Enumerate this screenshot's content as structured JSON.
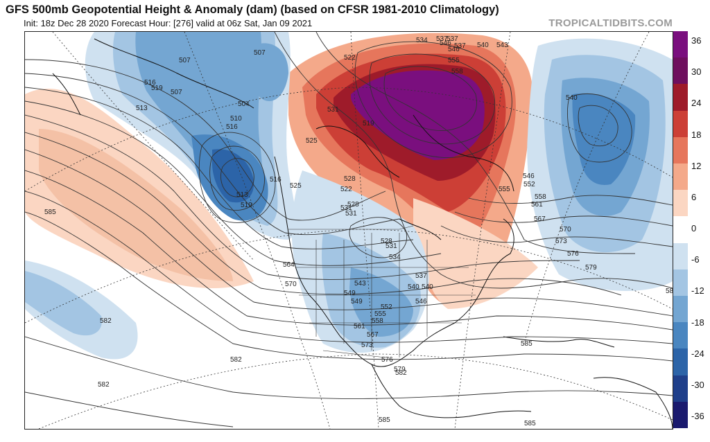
{
  "header": {
    "title": "GFS 500mb Geopotential Height & Anomaly (dam) (based on CFSR 1981-2010 Climatology)",
    "subtitle": "Init: 18z Dec 28 2020   Forecast Hour: [276]   valid at 06z Sat, Jan 09 2021",
    "brand": "TROPICALTIDBITS.COM"
  },
  "colorbar": {
    "labels": [
      "36",
      "30",
      "24",
      "18",
      "12",
      "6",
      "0",
      "-6",
      "-12",
      "-18",
      "-24",
      "-30",
      "-36"
    ],
    "colors": [
      "#1a1a6e",
      "#1f3f8a",
      "#2c64a8",
      "#4a86c0",
      "#74a6d2",
      "#a3c5e3",
      "#cfe1f0",
      "#ffffff",
      "#fbd6c2",
      "#f4a98a",
      "#e6765c",
      "#cc3f36",
      "#9e1b2a",
      "#6e0f5e",
      "#7a0f7e"
    ]
  },
  "contour_labels": [
    "507",
    "507",
    "516",
    "519",
    "513",
    "504",
    "510",
    "516",
    "522",
    "525",
    "531",
    "528",
    "519",
    "522",
    "528",
    "531",
    "537",
    "546",
    "537",
    "540",
    "543",
    "534",
    "537",
    "546",
    "555",
    "558",
    "540",
    "546",
    "552",
    "555",
    "558",
    "561",
    "567",
    "570",
    "573",
    "576",
    "579",
    "582",
    "585",
    "582",
    "582",
    "582",
    "582",
    "585",
    "585",
    "585",
    "564",
    "570",
    "549",
    "543",
    "540",
    "537",
    "534",
    "531",
    "528",
    "540",
    "546",
    "549",
    "552",
    "555",
    "558",
    "561",
    "567",
    "573",
    "576",
    "579",
    "513",
    "519",
    "516",
    "507",
    "525",
    "531"
  ]
}
